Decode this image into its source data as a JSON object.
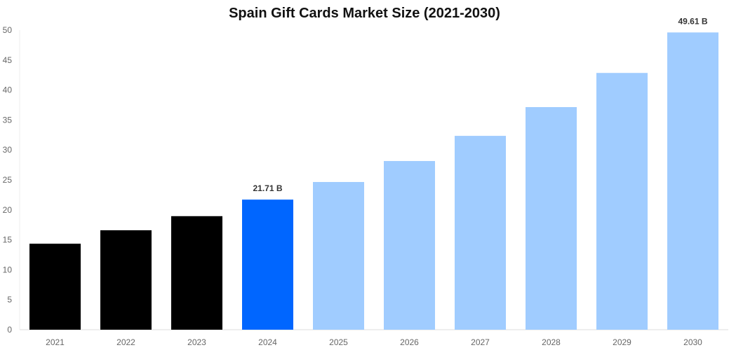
{
  "chart_data": {
    "type": "bar",
    "title": "Spain Gift Cards Market Size (2021-2030)",
    "xlabel": "",
    "ylabel": "",
    "categories": [
      "2021",
      "2022",
      "2023",
      "2024",
      "2025",
      "2026",
      "2027",
      "2028",
      "2029",
      "2030"
    ],
    "values": [
      14.35,
      16.6,
      18.95,
      21.71,
      24.65,
      28.15,
      32.35,
      37.15,
      42.85,
      49.61
    ],
    "bar_colors": [
      "#000000",
      "#000000",
      "#000000",
      "#0066FF",
      "#A0CCFF",
      "#A0CCFF",
      "#A0CCFF",
      "#A0CCFF",
      "#A0CCFF",
      "#A0CCFF"
    ],
    "data_labels": [
      {
        "category": "2024",
        "text": "21.71 B"
      },
      {
        "category": "2030",
        "text": "49.61 B"
      }
    ],
    "ylim": [
      0,
      50
    ],
    "yticks": [
      0,
      5,
      10,
      15,
      20,
      25,
      30,
      35,
      40,
      45,
      50
    ],
    "grid": false,
    "legend": "none"
  }
}
